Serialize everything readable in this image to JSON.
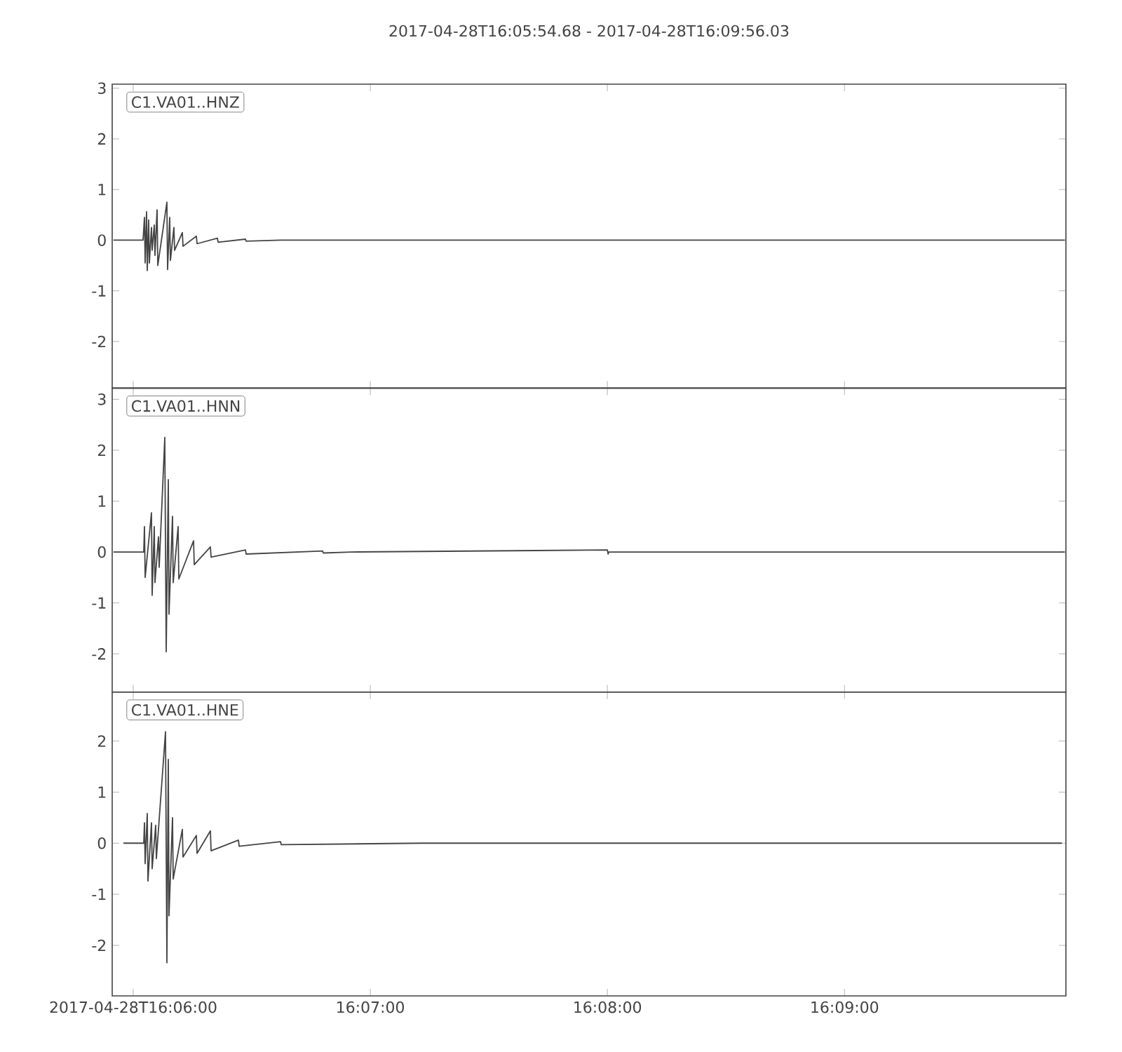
{
  "chart_data": [
    {
      "type": "line",
      "title": "2017-04-28T16:05:54.68  -  2017-04-28T16:09:56.03",
      "xlim": [
        16.098522,
        16.165564
      ],
      "ylim": [
        -2.92,
        3.08
      ],
      "yticks": [
        -2,
        -1,
        0,
        1,
        2,
        3
      ],
      "tick_labels": "y",
      "xticks": [
        {
          "value": 16.1,
          "label": null
        },
        {
          "value": 16.116667,
          "label": null
        },
        {
          "value": 16.133333,
          "label": null
        },
        {
          "value": 16.15,
          "label": null
        }
      ],
      "series": [
        {
          "name": "C1.VA01..HNZ",
          "color": "#454545",
          "x": [
            16.098619,
            16.10069,
            16.100789,
            16.100838,
            16.100937,
            16.100986,
            16.101085,
            16.101134,
            16.101282,
            16.101331,
            16.101479,
            16.101528,
            16.101677,
            16.101726,
            16.102367,
            16.102416,
            16.102564,
            16.102613,
            16.10286,
            16.102909,
            16.103452,
            16.103501,
            16.104437,
            16.104487,
            16.105917,
            16.105966,
            16.10789,
            16.107939,
            16.110355,
            16.165484
          ],
          "values": [
            0,
            0,
            0.45,
            -0.45,
            0.56,
            -0.6,
            0.4,
            -0.45,
            0.25,
            -0.2,
            0.3,
            -0.3,
            0.6,
            -0.5,
            0.75,
            -0.58,
            0.45,
            -0.4,
            0.25,
            -0.2,
            0.15,
            -0.12,
            0.08,
            -0.07,
            0.04,
            -0.04,
            0.02,
            -0.02,
            0,
            0
          ]
        }
      ]
    },
    {
      "type": "line",
      "xlim": [
        16.098522,
        16.165564
      ],
      "ylim": [
        -2.75,
        3.22
      ],
      "yticks": [
        -2,
        -1,
        0,
        1,
        2,
        3
      ],
      "tick_labels": "y",
      "xticks": [
        {
          "value": 16.1,
          "label": null
        },
        {
          "value": 16.116667,
          "label": null
        },
        {
          "value": 16.133333,
          "label": null
        },
        {
          "value": 16.15,
          "label": null
        }
      ],
      "series": [
        {
          "name": "C1.VA01..HNN",
          "color": "#454545",
          "x": [
            16.098619,
            16.10074,
            16.100789,
            16.100838,
            16.101282,
            16.101331,
            16.101479,
            16.101528,
            16.101775,
            16.101824,
            16.102219,
            16.102318,
            16.102466,
            16.102515,
            16.102761,
            16.10281,
            16.103156,
            16.103205,
            16.104241,
            16.10429,
            16.105424,
            16.105473,
            16.10789,
            16.107939,
            16.113314,
            16.113363,
            16.115286,
            16.133334,
            16.133383,
            16.133432,
            16.165484
          ],
          "values": [
            0,
            0,
            0.5,
            -0.5,
            0.77,
            -0.85,
            0.5,
            -0.6,
            0.3,
            -0.3,
            2.25,
            -1.96,
            1.42,
            -1.22,
            0.7,
            -0.6,
            0.5,
            -0.53,
            0.22,
            -0.25,
            0.1,
            -0.1,
            0.04,
            -0.04,
            0.02,
            -0.02,
            0,
            0.04,
            -0.04,
            0,
            0
          ]
        }
      ]
    },
    {
      "type": "line",
      "xlim": [
        16.098522,
        16.165564
      ],
      "ylim": [
        -2.99,
        2.96
      ],
      "yticks": [
        -2,
        -1,
        0,
        1,
        2
      ],
      "xticks": [
        {
          "value": 16.1,
          "label": "2017-04-28T16:06:00"
        },
        {
          "value": 16.116667,
          "label": "16:07:00"
        },
        {
          "value": 16.133333,
          "label": "16:08:00"
        },
        {
          "value": 16.15,
          "label": "16:09:00"
        }
      ],
      "series": [
        {
          "name": "C1.VA01..HNE",
          "color": "#454545",
          "x": [
            16.09931,
            16.10074,
            16.100789,
            16.100838,
            16.100986,
            16.101035,
            16.101282,
            16.101331,
            16.101578,
            16.101627,
            16.102268,
            16.102367,
            16.102466,
            16.102515,
            16.102761,
            16.10281,
            16.103452,
            16.103501,
            16.104437,
            16.104487,
            16.105424,
            16.105473,
            16.107397,
            16.107446,
            16.110355,
            16.110404,
            16.120217,
            16.165286
          ],
          "values": [
            0,
            0,
            0.4,
            -0.4,
            0.58,
            -0.74,
            0.4,
            -0.5,
            0.35,
            -0.3,
            2.18,
            -2.34,
            1.64,
            -1.42,
            0.5,
            -0.7,
            0.27,
            -0.27,
            0.15,
            -0.2,
            0.24,
            -0.15,
            0.06,
            -0.06,
            0.03,
            -0.03,
            0,
            0
          ]
        }
      ]
    }
  ]
}
